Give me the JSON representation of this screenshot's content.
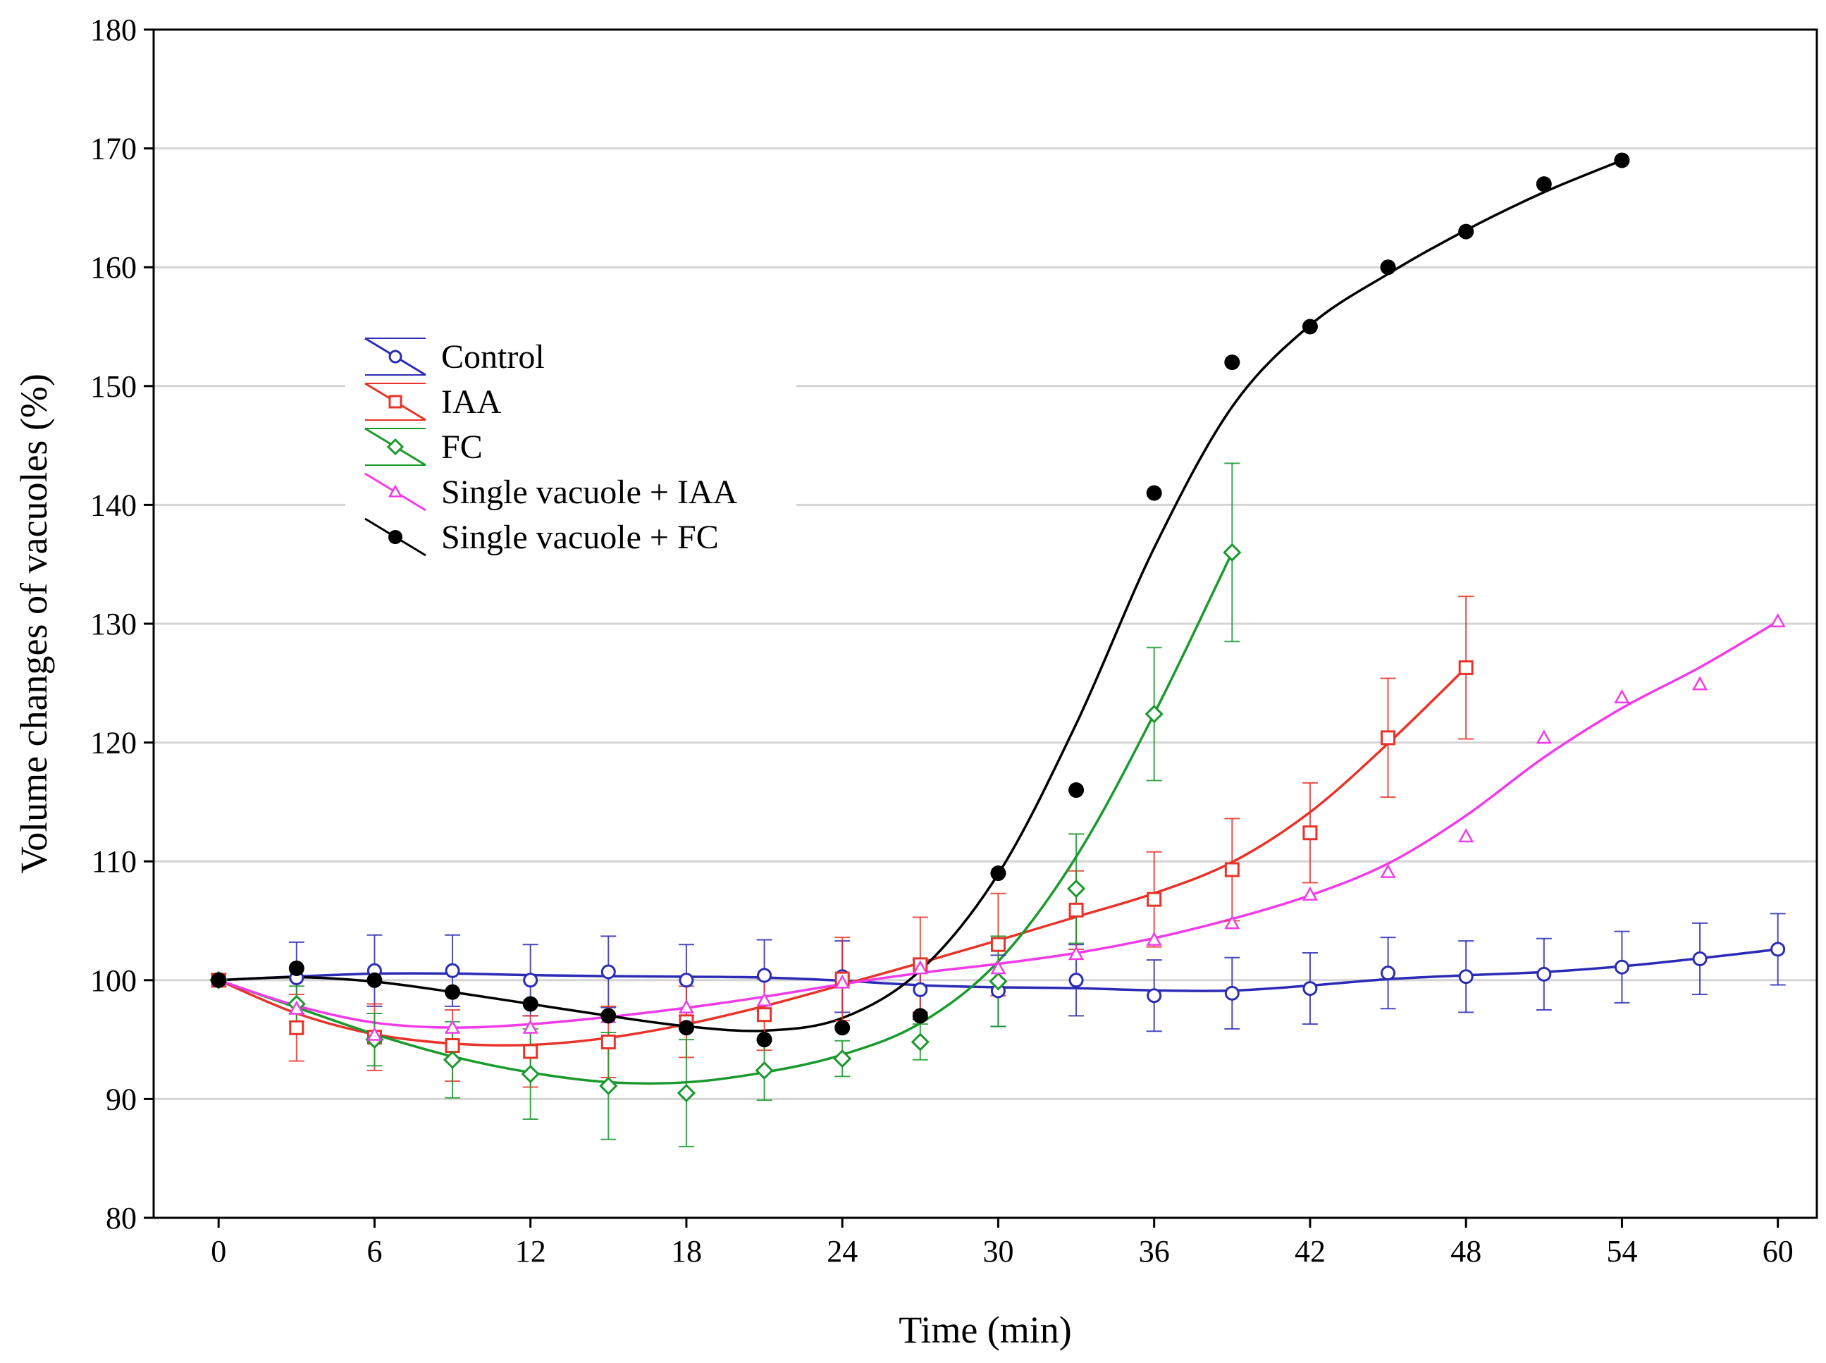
{
  "chart_data": {
    "type": "line",
    "xlabel": "Time (min)",
    "ylabel": "Volume changes of vacuoles (%)",
    "xlim": [
      -2.5,
      61.5
    ],
    "ylim": [
      80,
      180
    ],
    "xticks": [
      0,
      6,
      12,
      18,
      24,
      30,
      36,
      42,
      48,
      54,
      60
    ],
    "yticks": [
      80,
      90,
      100,
      110,
      120,
      130,
      140,
      150,
      160,
      170,
      180
    ],
    "grid": "horizontal",
    "legend_position": "upper-left",
    "series": [
      {
        "name": "Control",
        "color": "#2b2bb5",
        "marker": "circle-open",
        "x": [
          0,
          3,
          6,
          9,
          12,
          15,
          18,
          21,
          24,
          27,
          30,
          33,
          36,
          39,
          42,
          45,
          48,
          51,
          54,
          57,
          60
        ],
        "y": [
          100,
          100.2,
          100.8,
          100.8,
          100,
          100.7,
          100,
          100.4,
          100.3,
          99.2,
          99.1,
          100,
          98.7,
          98.9,
          99.3,
          100.6,
          100.3,
          100.5,
          101.1,
          101.8,
          102.6
        ],
        "err": [
          0.5,
          3,
          3,
          3,
          3,
          3,
          3,
          3,
          3,
          2.5,
          3,
          3,
          3,
          3,
          3,
          3,
          3,
          3,
          3,
          3,
          3
        ]
      },
      {
        "name": "IAA",
        "color": "#e8332a",
        "marker": "square-open",
        "x": [
          0,
          3,
          6,
          9,
          12,
          15,
          18,
          21,
          24,
          27,
          30,
          33,
          36,
          39,
          42,
          45,
          48
        ],
        "y": [
          100,
          96,
          95.2,
          94.5,
          94,
          94.8,
          96.5,
          97.1,
          100.1,
          101.3,
          103,
          105.9,
          106.8,
          109.3,
          112.4,
          120.4,
          126.3
        ],
        "err": [
          0.5,
          2.8,
          2.8,
          3,
          3,
          3,
          3,
          3,
          3.5,
          4,
          4.3,
          3.3,
          4,
          4.3,
          4.2,
          5,
          6
        ]
      },
      {
        "name": "FC",
        "color": "#1a9a2e",
        "marker": "diamond-open",
        "x": [
          0,
          3,
          6,
          9,
          12,
          15,
          18,
          21,
          24,
          27,
          30,
          33,
          36,
          39
        ],
        "y": [
          100,
          98,
          95,
          93.3,
          92.1,
          91.1,
          90.5,
          92.4,
          93.4,
          94.8,
          99.9,
          107.7,
          122.4,
          136
        ],
        "err": [
          0.5,
          1.5,
          2.2,
          3.2,
          3.8,
          4.5,
          4.5,
          2.5,
          1.5,
          1.5,
          3.8,
          4.6,
          5.6,
          7.5
        ]
      },
      {
        "name": "Single vacuole + IAA",
        "color": "#f03ce8",
        "marker": "triangle-open",
        "x": [
          0,
          3,
          6,
          9,
          12,
          15,
          18,
          21,
          24,
          27,
          30,
          33,
          36,
          39,
          42,
          45,
          48,
          51,
          54,
          57,
          60
        ],
        "y": [
          100,
          97.6,
          95.4,
          96,
          96,
          96.9,
          97.7,
          98.3,
          99.8,
          101,
          101,
          102.2,
          103.4,
          104.8,
          107.2,
          109.1,
          112.1,
          120.4,
          123.8,
          124.9,
          130.2
        ],
        "err": []
      },
      {
        "name": "Single vacuole + FC",
        "color": "#000000",
        "marker": "circle-filled",
        "x": [
          0,
          3,
          6,
          9,
          12,
          15,
          18,
          21,
          24,
          27,
          30,
          33,
          36,
          39,
          42,
          45,
          48,
          51,
          54
        ],
        "y": [
          100,
          101,
          100,
          99,
          98,
          97,
          96,
          95,
          96,
          97,
          109,
          116,
          141,
          152,
          155,
          160,
          163,
          167,
          169
        ],
        "err": []
      }
    ]
  }
}
